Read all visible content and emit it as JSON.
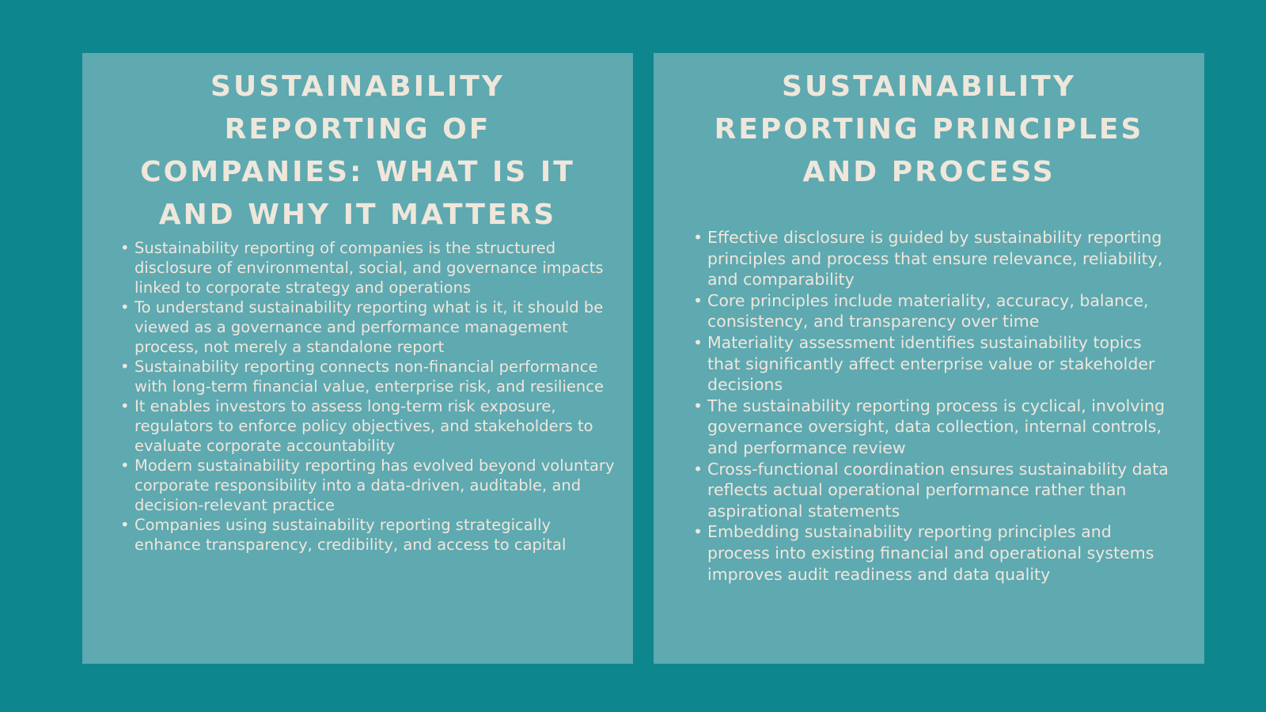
{
  "left_panel": {
    "title": "Sustainability Reporting of Companies: What is it and Why it Matters",
    "bullets": [
      "Sustainability reporting of companies is the structured disclosure of environmental, social, and governance impacts linked to corporate strategy and operations",
      "To understand sustainability reporting what is it, it should be viewed as a governance and performance management process, not merely a standalone report",
      "Sustainability reporting connects non-financial performance with long-term financial value, enterprise risk, and resilience",
      "It enables investors to assess long-term risk exposure, regulators to enforce policy objectives, and stakeholders to evaluate corporate accountability",
      "Modern sustainability reporting has evolved beyond voluntary corporate responsibility into a data-driven, auditable, and decision-relevant practice",
      "Companies using sustainability reporting strategically enhance transparency, credibility, and access to capital"
    ]
  },
  "right_panel": {
    "title": "Sustainability Reporting Principles and Process",
    "bullets": [
      "Effective disclosure is guided by sustainability reporting principles and process that ensure relevance, reliability, and comparability",
      "Core principles include materiality, accuracy, balance, consistency, and transparency over time",
      "Materiality assessment identifies sustainability topics that significantly affect enterprise value or stakeholder decisions",
      "The sustainability reporting process is cyclical, involving governance oversight, data collection, internal controls, and performance review",
      "Cross-functional coordination ensures sustainability data reflects actual operational performance rather than aspirational statements",
      "Embedding sustainability reporting principles and process into existing financial and operational systems improves audit readiness and data quality"
    ]
  },
  "colors": {
    "background": "#0e868d",
    "panel": "#5fa9b1",
    "text": "#efe7db"
  }
}
